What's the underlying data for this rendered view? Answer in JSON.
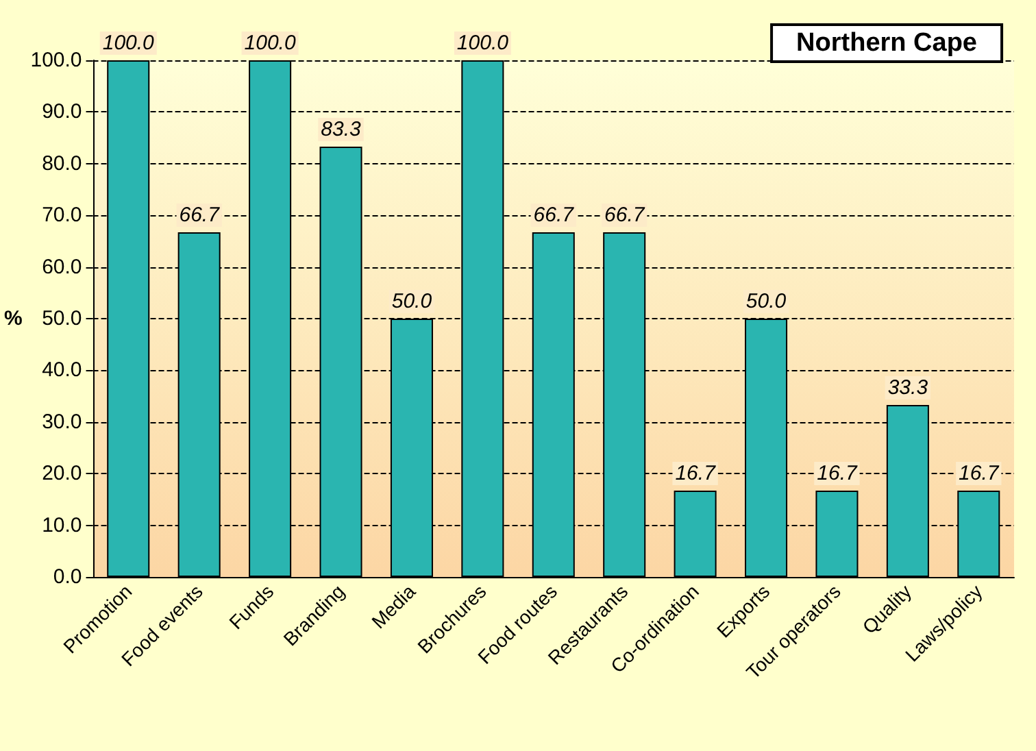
{
  "chart_data": {
    "type": "bar",
    "title": "Northern Cape",
    "ylabel": "%",
    "categories": [
      "Promotion",
      "Food events",
      "Funds",
      "Branding",
      "Media",
      "Brochures",
      "Food routes",
      "Restaurants",
      "Co-ordination",
      "Exports",
      "Tour operators",
      "Quality",
      "Laws/policy"
    ],
    "values": [
      100,
      66.7,
      100,
      83.3,
      50,
      100,
      66.7,
      66.7,
      16.7,
      50,
      16.7,
      33.3,
      16.7
    ],
    "value_labels": [
      "100.0",
      "66.7",
      "100.0",
      "83.3",
      "50.0",
      "100.0",
      "66.7",
      "66.7",
      "16.7",
      "50.0",
      "16.7",
      "33.3",
      "16.7"
    ],
    "color": "#2ab5b0",
    "ylim": [
      0,
      100
    ],
    "yticks": [
      {
        "value": 0,
        "label": "0.0"
      },
      {
        "value": 10,
        "label": "10.0"
      },
      {
        "value": 20,
        "label": "20.0"
      },
      {
        "value": 30,
        "label": "30.0"
      },
      {
        "value": 40,
        "label": "40.0"
      },
      {
        "value": 50,
        "label": "50.0"
      },
      {
        "value": 60,
        "label": "60.0"
      },
      {
        "value": 70,
        "label": "70.0"
      },
      {
        "value": 80,
        "label": "80.0"
      },
      {
        "value": 90,
        "label": "90.0"
      },
      {
        "value": 100,
        "label": "100.0"
      }
    ],
    "grid": "y"
  }
}
